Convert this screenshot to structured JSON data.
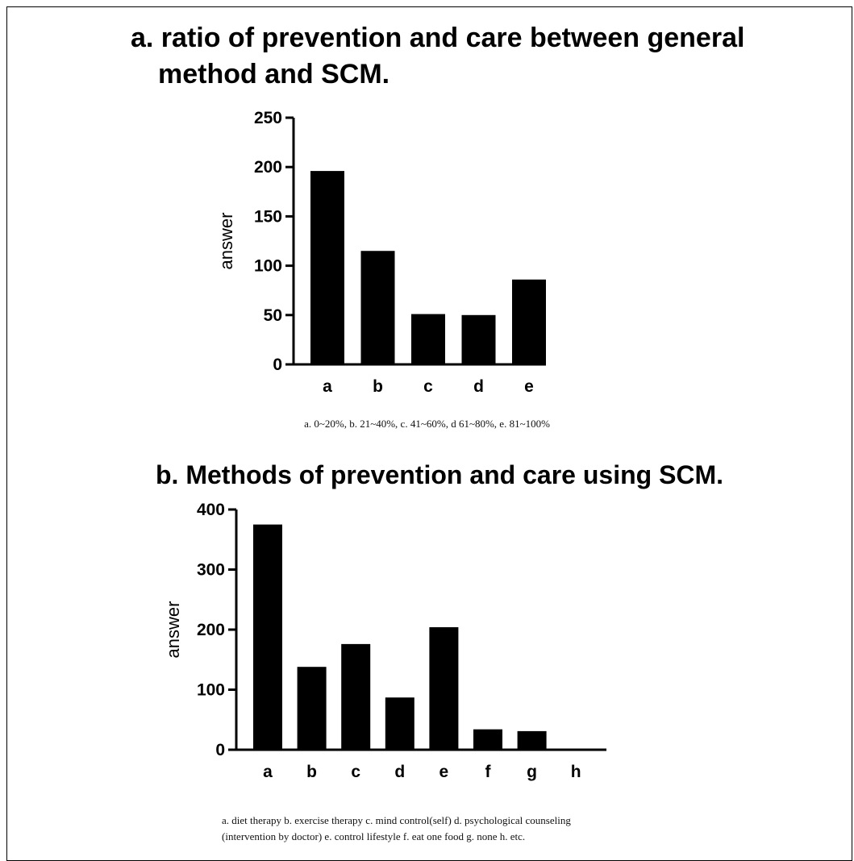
{
  "chart_data": [
    {
      "type": "bar",
      "title_lines": [
        "a. ratio of prevention and care between general",
        "method and SCM."
      ],
      "ylabel": "answer",
      "xlabel": "",
      "categories": [
        "a",
        "b",
        "c",
        "d",
        "e"
      ],
      "values": [
        196,
        115,
        51,
        50,
        86
      ],
      "ylim": [
        0,
        250
      ],
      "yticks": [
        "0",
        "50",
        "100",
        "150",
        "200",
        "250"
      ],
      "bar_color": "#000000",
      "grid": false,
      "caption": "a. 0~20%, b. 21~40%, c. 41~60%, d 61~80%, e. 81~100%"
    },
    {
      "type": "bar",
      "title": "b. Methods of prevention and care using SCM.",
      "ylabel": "answer",
      "xlabel": "",
      "categories": [
        "a",
        "b",
        "c",
        "d",
        "e",
        "f",
        "g",
        "h"
      ],
      "values": [
        375,
        138,
        176,
        87,
        204,
        34,
        31,
        0
      ],
      "ylim": [
        0,
        400
      ],
      "yticks": [
        "0",
        "100",
        "200",
        "300",
        "400"
      ],
      "bar_color": "#000000",
      "grid": false,
      "caption_lines": [
        "a. diet therapy b. exercise therapy c. mind control(self) d. psychological counseling",
        "(intervention by doctor) e. control lifestyle f. eat one food g. none h. etc."
      ]
    }
  ]
}
